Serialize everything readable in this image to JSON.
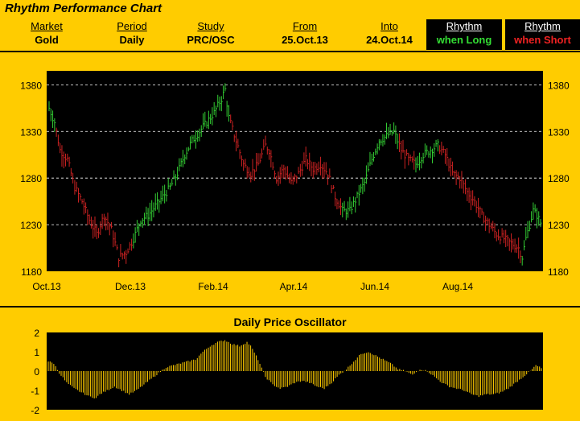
{
  "header": {
    "title": "Rhythm Performance Chart",
    "columns": [
      {
        "label": "Market",
        "value": "Gold"
      },
      {
        "label": "Period",
        "value": "Daily"
      },
      {
        "label": "Study",
        "value": "PRC/OSC"
      },
      {
        "label": "From",
        "value": "25.Oct.13"
      },
      {
        "label": "Into",
        "value": "24.Oct.14"
      }
    ],
    "rhythm_long": {
      "label": "Rhythm",
      "value": "when Long"
    },
    "rhythm_short": {
      "label": "Rhythm",
      "value": "when Short"
    }
  },
  "colors": {
    "background": "#FFCC00",
    "plot_bg": "#000000",
    "long": "#33CC33",
    "short": "#CC2222",
    "oscillator": "#FFCC00",
    "grid": "#FFFFFF"
  },
  "chart_data": [
    {
      "type": "ohlc",
      "title": "",
      "xlabel": "",
      "ylabel": "",
      "ylim": [
        1180,
        1395
      ],
      "yticks": [
        1180,
        1230,
        1280,
        1330,
        1380
      ],
      "xtick_labels": [
        "Oct.13",
        "Dec.13",
        "Feb.14",
        "Apr.14",
        "Jun.14",
        "Aug.14"
      ],
      "grid": "horizontal dashed",
      "legend": "none",
      "keyframes_close": [
        [
          0,
          1355
        ],
        [
          3,
          1340
        ],
        [
          6,
          1310
        ],
        [
          10,
          1300
        ],
        [
          14,
          1270
        ],
        [
          18,
          1255
        ],
        [
          22,
          1235
        ],
        [
          26,
          1220
        ],
        [
          30,
          1240
        ],
        [
          34,
          1225
        ],
        [
          38,
          1195
        ],
        [
          42,
          1200
        ],
        [
          46,
          1215
        ],
        [
          50,
          1235
        ],
        [
          54,
          1240
        ],
        [
          58,
          1250
        ],
        [
          62,
          1260
        ],
        [
          66,
          1270
        ],
        [
          70,
          1285
        ],
        [
          74,
          1305
        ],
        [
          78,
          1320
        ],
        [
          82,
          1330
        ],
        [
          86,
          1340
        ],
        [
          90,
          1350
        ],
        [
          94,
          1365
        ],
        [
          96,
          1375
        ],
        [
          98,
          1345
        ],
        [
          102,
          1320
        ],
        [
          106,
          1295
        ],
        [
          110,
          1285
        ],
        [
          114,
          1295
        ],
        [
          118,
          1315
        ],
        [
          120,
          1310
        ],
        [
          124,
          1280
        ],
        [
          128,
          1290
        ],
        [
          132,
          1275
        ],
        [
          136,
          1285
        ],
        [
          140,
          1300
        ],
        [
          144,
          1290
        ],
        [
          148,
          1295
        ],
        [
          152,
          1285
        ],
        [
          156,
          1260
        ],
        [
          160,
          1245
        ],
        [
          164,
          1245
        ],
        [
          168,
          1260
        ],
        [
          172,
          1275
        ],
        [
          176,
          1300
        ],
        [
          180,
          1320
        ],
        [
          184,
          1325
        ],
        [
          188,
          1330
        ],
        [
          192,
          1310
        ],
        [
          196,
          1300
        ],
        [
          200,
          1295
        ],
        [
          204,
          1305
        ],
        [
          208,
          1310
        ],
        [
          212,
          1315
        ],
        [
          216,
          1305
        ],
        [
          220,
          1285
        ],
        [
          224,
          1280
        ],
        [
          228,
          1265
        ],
        [
          232,
          1255
        ],
        [
          236,
          1240
        ],
        [
          240,
          1230
        ],
        [
          244,
          1220
        ],
        [
          248,
          1215
        ],
        [
          252,
          1210
        ],
        [
          256,
          1205
        ],
        [
          258,
          1195
        ],
        [
          260,
          1215
        ],
        [
          262,
          1230
        ],
        [
          264,
          1245
        ],
        [
          266,
          1240
        ],
        [
          268,
          1232
        ]
      ],
      "bar_count": 269,
      "long_ranges": [
        [
          0,
          3
        ],
        [
          46,
          98
        ],
        [
          160,
          190
        ],
        [
          200,
          212
        ],
        [
          258,
          268
        ]
      ]
    },
    {
      "type": "bar",
      "title": "Daily Price Oscillator",
      "xlabel": "",
      "ylabel": "",
      "ylim": [
        -2,
        2
      ],
      "yticks": [
        -2,
        -1,
        0,
        1,
        2
      ],
      "grid": "none",
      "legend": "none",
      "keyframes": [
        [
          0,
          0.5
        ],
        [
          3,
          0.4
        ],
        [
          6,
          -0.1
        ],
        [
          10,
          -0.6
        ],
        [
          14,
          -0.9
        ],
        [
          18,
          -1.1
        ],
        [
          22,
          -1.3
        ],
        [
          26,
          -1.4
        ],
        [
          28,
          -1.2
        ],
        [
          32,
          -1.0
        ],
        [
          36,
          -0.8
        ],
        [
          40,
          -1.0
        ],
        [
          44,
          -1.2
        ],
        [
          48,
          -1.0
        ],
        [
          52,
          -0.7
        ],
        [
          56,
          -0.4
        ],
        [
          60,
          -0.1
        ],
        [
          64,
          0.2
        ],
        [
          68,
          0.3
        ],
        [
          72,
          0.4
        ],
        [
          76,
          0.5
        ],
        [
          80,
          0.6
        ],
        [
          84,
          1.0
        ],
        [
          88,
          1.3
        ],
        [
          92,
          1.5
        ],
        [
          96,
          1.6
        ],
        [
          100,
          1.4
        ],
        [
          104,
          1.3
        ],
        [
          108,
          1.5
        ],
        [
          110,
          1.3
        ],
        [
          114,
          0.6
        ],
        [
          118,
          -0.3
        ],
        [
          122,
          -0.7
        ],
        [
          126,
          -0.9
        ],
        [
          130,
          -0.8
        ],
        [
          134,
          -0.6
        ],
        [
          138,
          -0.5
        ],
        [
          142,
          -0.6
        ],
        [
          146,
          -0.8
        ],
        [
          150,
          -0.9
        ],
        [
          154,
          -0.6
        ],
        [
          158,
          -0.2
        ],
        [
          162,
          0.1
        ],
        [
          166,
          0.5
        ],
        [
          170,
          0.9
        ],
        [
          174,
          1.0
        ],
        [
          178,
          0.8
        ],
        [
          182,
          0.6
        ],
        [
          186,
          0.4
        ],
        [
          190,
          0.1
        ],
        [
          194,
          0.0
        ],
        [
          198,
          -0.2
        ],
        [
          202,
          0.1
        ],
        [
          206,
          0.0
        ],
        [
          210,
          -0.3
        ],
        [
          214,
          -0.6
        ],
        [
          218,
          -0.8
        ],
        [
          222,
          -0.9
        ],
        [
          226,
          -1.0
        ],
        [
          230,
          -1.2
        ],
        [
          234,
          -1.3
        ],
        [
          238,
          -1.2
        ],
        [
          242,
          -1.2
        ],
        [
          246,
          -1.1
        ],
        [
          250,
          -0.9
        ],
        [
          254,
          -0.6
        ],
        [
          258,
          -0.3
        ],
        [
          262,
          0.0
        ],
        [
          265,
          0.3
        ],
        [
          268,
          0.15
        ]
      ],
      "bar_count": 269
    }
  ]
}
